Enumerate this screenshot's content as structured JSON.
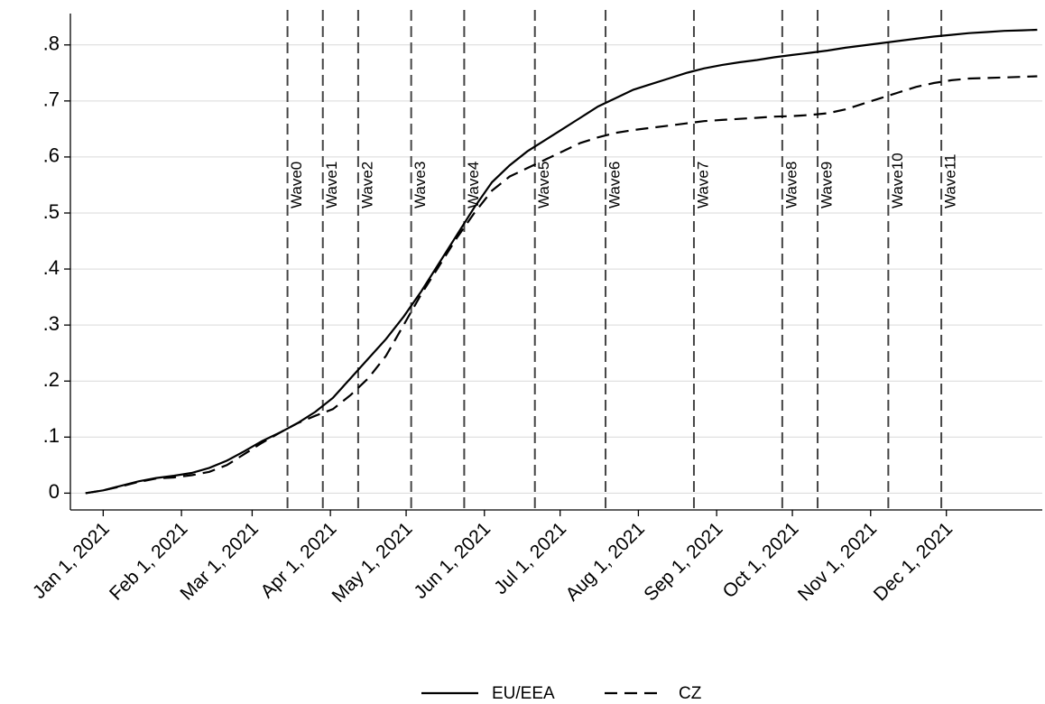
{
  "chart_data": {
    "type": "line",
    "x": [
      -7,
      0,
      7,
      14,
      21,
      28,
      35,
      42,
      49,
      56,
      63,
      70,
      77,
      84,
      91,
      98,
      105,
      112,
      119,
      126,
      133,
      140,
      147,
      154,
      161,
      168,
      175,
      182,
      189,
      196,
      203,
      210,
      217,
      224,
      231,
      238,
      245,
      252,
      259,
      266,
      273,
      280,
      287,
      294,
      301,
      308,
      315,
      322,
      329,
      336,
      343,
      350,
      357,
      364,
      370
    ],
    "series": [
      {
        "name": "EU/EEA",
        "color": "#000000",
        "line_style": "solid",
        "values": [
          0,
          0.005,
          0.013,
          0.021,
          0.027,
          0.031,
          0.036,
          0.045,
          0.058,
          0.075,
          0.093,
          0.108,
          0.125,
          0.145,
          0.17,
          0.205,
          0.24,
          0.275,
          0.315,
          0.36,
          0.41,
          0.46,
          0.51,
          0.555,
          0.585,
          0.61,
          0.63,
          0.65,
          0.67,
          0.69,
          0.705,
          0.72,
          0.73,
          0.74,
          0.75,
          0.758,
          0.764,
          0.769,
          0.773,
          0.778,
          0.782,
          0.786,
          0.79,
          0.795,
          0.799,
          0.803,
          0.807,
          0.811,
          0.815,
          0.818,
          0.821,
          0.823,
          0.825,
          0.826,
          0.827
        ]
      },
      {
        "name": "CZ",
        "color": "#000000",
        "line_style": "dashed",
        "values": [
          0,
          0.005,
          0.012,
          0.02,
          0.026,
          0.028,
          0.032,
          0.038,
          0.05,
          0.07,
          0.09,
          0.108,
          0.125,
          0.138,
          0.15,
          0.175,
          0.205,
          0.245,
          0.3,
          0.355,
          0.405,
          0.455,
          0.5,
          0.54,
          0.565,
          0.58,
          0.595,
          0.61,
          0.625,
          0.635,
          0.643,
          0.648,
          0.652,
          0.656,
          0.66,
          0.664,
          0.666,
          0.668,
          0.67,
          0.672,
          0.673,
          0.675,
          0.678,
          0.685,
          0.695,
          0.705,
          0.715,
          0.725,
          0.732,
          0.737,
          0.74,
          0.741,
          0.742,
          0.743,
          0.744
        ]
      }
    ],
    "xlim": [
      -13,
      372
    ],
    "xticks": [
      {
        "value": 0,
        "label": "Jan 1, 2021"
      },
      {
        "value": 31,
        "label": "Feb 1, 2021"
      },
      {
        "value": 59,
        "label": "Mar 1, 2021"
      },
      {
        "value": 90,
        "label": "Apr 1, 2021"
      },
      {
        "value": 120,
        "label": "May 1, 2021"
      },
      {
        "value": 151,
        "label": "Jun 1, 2021"
      },
      {
        "value": 181,
        "label": "Jul 1, 2021"
      },
      {
        "value": 212,
        "label": "Aug 1, 2021"
      },
      {
        "value": 243,
        "label": "Sep 1, 2021"
      },
      {
        "value": 273,
        "label": "Oct 1, 2021"
      },
      {
        "value": 304,
        "label": "Nov 1, 2021"
      },
      {
        "value": 334,
        "label": "Dec 1, 2021"
      }
    ],
    "ylim": [
      -0.03,
      0.856
    ],
    "yticks": [
      0,
      {
        "value": 0.1,
        "label": ".1"
      },
      {
        "value": 0.2,
        "label": ".2"
      },
      {
        "value": 0.3,
        "label": ".3"
      },
      {
        "value": 0.4,
        "label": ".4"
      },
      {
        "value": 0.5,
        "label": ".5"
      },
      {
        "value": 0.6,
        "label": ".6"
      },
      {
        "value": 0.7,
        "label": ".7"
      },
      {
        "value": 0.8,
        "label": ".8"
      }
    ],
    "grid": true,
    "legend": "bottom",
    "vlines": [
      {
        "x": 73,
        "label": "Wave0"
      },
      {
        "x": 87,
        "label": "Wave1"
      },
      {
        "x": 101,
        "label": "Wave2"
      },
      {
        "x": 122,
        "label": "Wave3"
      },
      {
        "x": 143,
        "label": "Wave4"
      },
      {
        "x": 171,
        "label": "Wave5"
      },
      {
        "x": 199,
        "label": "Wave6"
      },
      {
        "x": 234,
        "label": "Wave7"
      },
      {
        "x": 269,
        "label": "Wave8"
      },
      {
        "x": 283,
        "label": "Wave9"
      },
      {
        "x": 311,
        "label": "Wave10"
      },
      {
        "x": 332,
        "label": "Wave11"
      }
    ]
  }
}
